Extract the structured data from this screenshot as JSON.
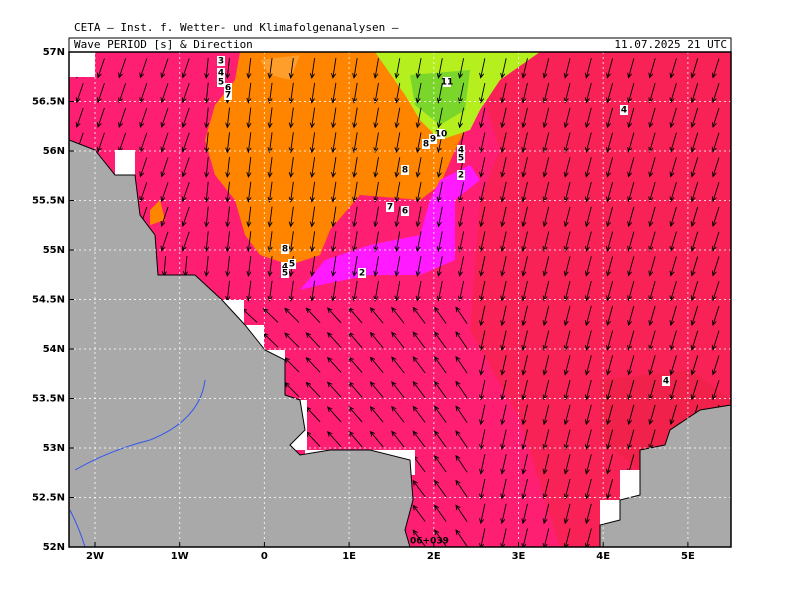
{
  "header": {
    "source": "CETA — Inst. f. Wetter- und Klimafolgenanalysen —",
    "title": "Wave PERIOD [s] & Direction",
    "date": "11.07.2025 21 UTC"
  },
  "axes": {
    "xticks": [
      "2W",
      "1W",
      "0",
      "1E",
      "2E",
      "3E",
      "4E",
      "5E"
    ],
    "yticks": [
      "57N",
      "56.5N",
      "56N",
      "55.5N",
      "55N",
      "54.5N",
      "54N",
      "53.5N",
      "53N",
      "52.5N",
      "52N"
    ]
  },
  "contour_labels": [
    "3",
    "4",
    "5",
    "6",
    "7",
    "11",
    "4",
    "10",
    "9",
    "8",
    "4",
    "5",
    "2",
    "8",
    "7",
    "6",
    "8",
    "4",
    "5",
    "5",
    "2",
    "4"
  ],
  "footer_code": "06+039"
}
